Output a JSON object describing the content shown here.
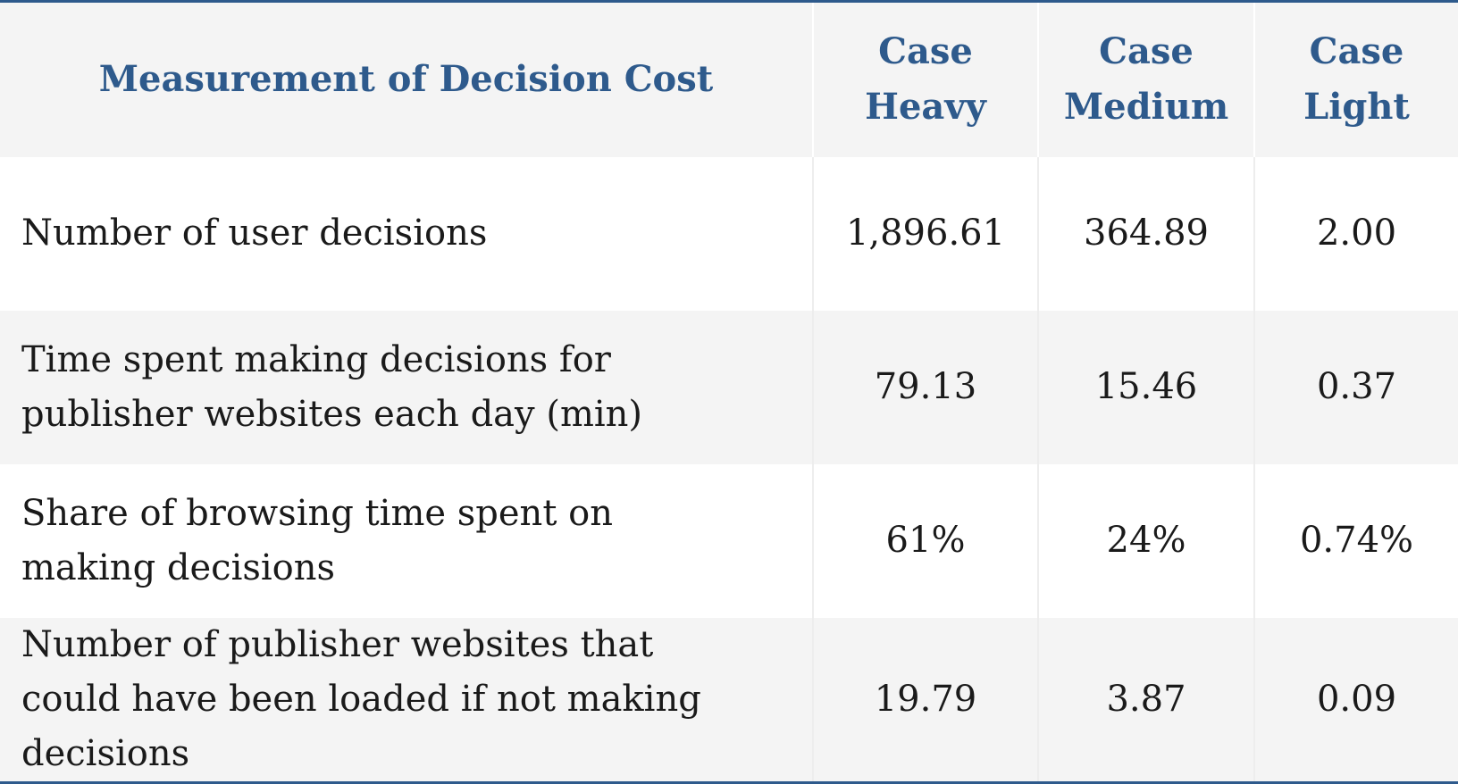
{
  "table": {
    "header": {
      "measurement": "Measurement of Decision Cost",
      "col1": "Case Heavy",
      "col2": "Case Medium",
      "col3": "Case Light"
    },
    "rows": [
      {
        "label": "Number of user decisions",
        "heavy": "1,896.61",
        "medium": "364.89",
        "light": "2.00"
      },
      {
        "label": "Time spent making decisions for publisher websites each day (min)",
        "heavy": "79.13",
        "medium": "15.46",
        "light": "0.37"
      },
      {
        "label": "Share of browsing time spent on making decisions",
        "heavy": "61%",
        "medium": "24%",
        "light": "0.74%"
      },
      {
        "label": "Number of publisher websites that could have been loaded if not making decisions",
        "heavy": "19.79",
        "medium": "3.87",
        "light": "0.09"
      }
    ],
    "colors": {
      "header_text": "#2e5a8c",
      "header_bg": "#f4f4f4",
      "rule": "#2e5a8c",
      "body_text": "#1a1a1a"
    }
  }
}
